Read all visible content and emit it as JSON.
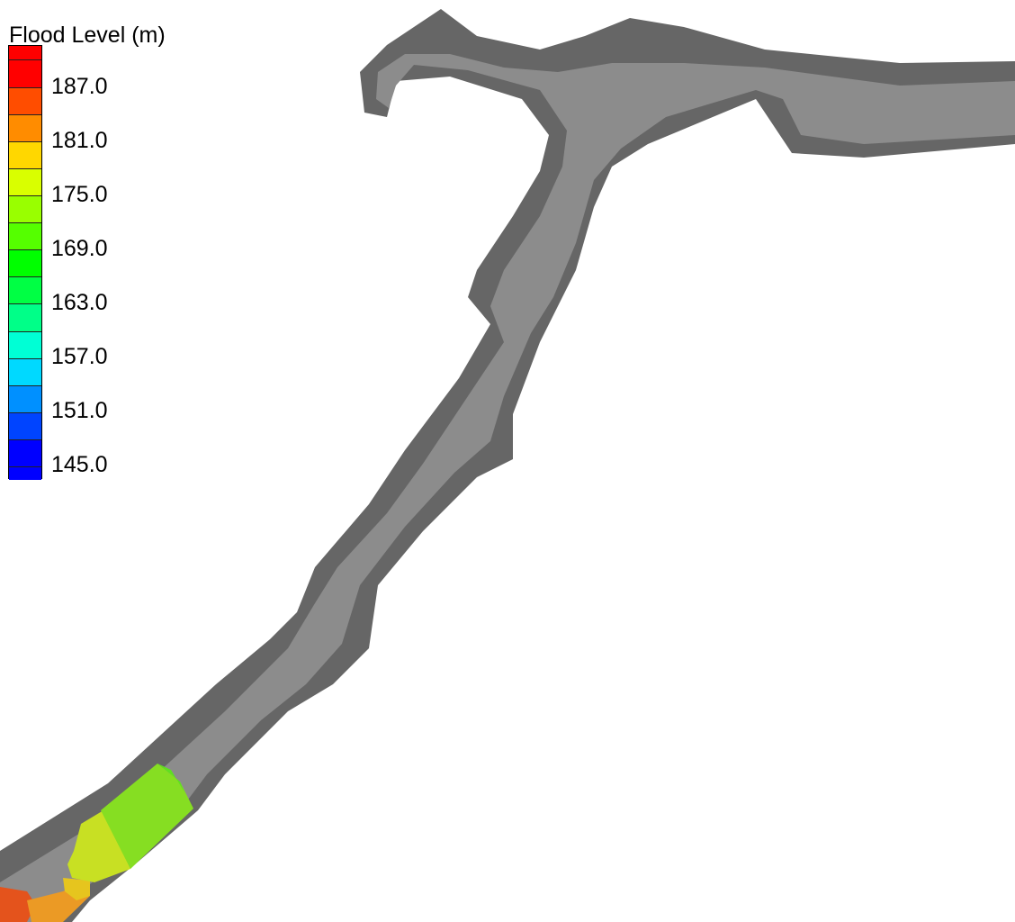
{
  "legend": {
    "title": "Flood Level (m)",
    "tick_labels": [
      "187.0",
      "181.0",
      "175.0",
      "169.0",
      "163.0",
      "157.0",
      "151.0",
      "145.0"
    ],
    "bin_colors_top_to_bottom": [
      "#ff0000",
      "#ff0000",
      "#ff4d00",
      "#ff8c00",
      "#ffd700",
      "#d9ff00",
      "#99ff00",
      "#55ff00",
      "#00ff00",
      "#00ff44",
      "#00ff88",
      "#00ffd5",
      "#00d9ff",
      "#0090ff",
      "#0044ff",
      "#0000ff",
      "#0000ff"
    ]
  },
  "scene": {
    "terrain_color": "#8c8c8c",
    "bank_color": "#666666",
    "flood_patches": [
      {
        "level_color": "#e4531c"
      },
      {
        "level_color": "#eb9a25"
      },
      {
        "level_color": "#e6c51e"
      },
      {
        "level_color": "#c8e023"
      },
      {
        "level_color": "#86de22"
      },
      {
        "level_color": "#5fe020"
      }
    ]
  }
}
